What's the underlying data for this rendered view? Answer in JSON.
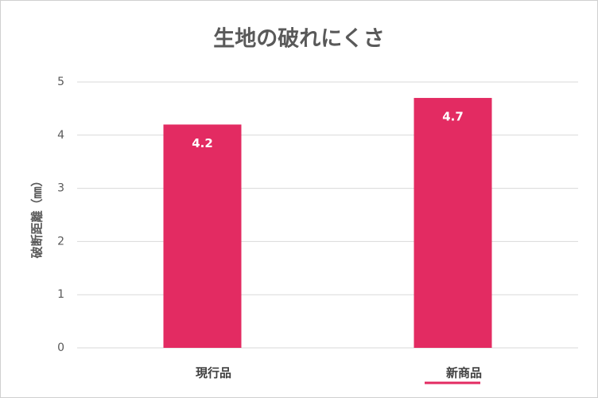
{
  "chart_data": {
    "type": "bar",
    "title": "生地の破れにくさ",
    "y_label": "破断距離（㎜）",
    "categories": [
      "現行品",
      "新商品"
    ],
    "values": [
      4.2,
      4.7
    ],
    "color": "#e32b62",
    "ylim": [
      0,
      5
    ],
    "yticks": [
      0,
      1,
      2,
      3,
      4,
      5
    ],
    "grid": true
  }
}
